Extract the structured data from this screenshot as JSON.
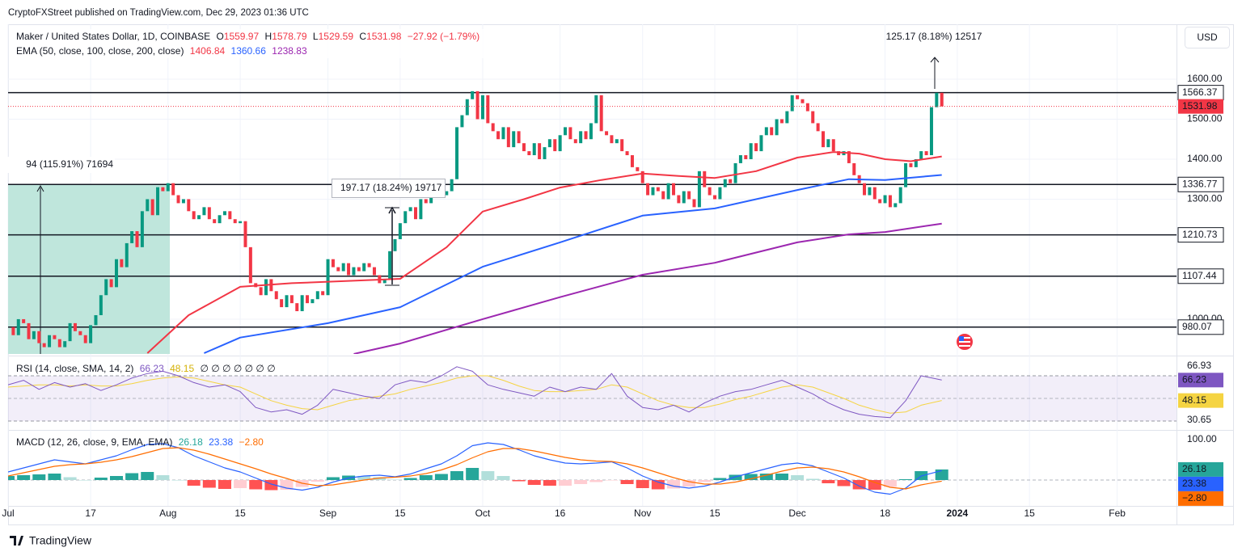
{
  "header": {
    "publisher": "CryptoFXStreet published on TradingView.com, Dec 29, 2023 01:36 UTC"
  },
  "footer": {
    "brand": "TradingView"
  },
  "chart_data": {
    "type": "candlestick",
    "legend": {
      "symbol": "Maker / United States Dollar, 1D, COINBASE",
      "o_label": "O",
      "open": 1559.97,
      "h_label": "H",
      "high": 1578.79,
      "l_label": "L",
      "low": 1529.59,
      "c_label": "C",
      "change": "−27.92 (−1.79%)",
      "ema_title": "EMA (50, close, 100, close, 200, close)"
    },
    "currency": "USD",
    "annotations": [
      "94 (115.91%) 71694",
      "197.17 (18.24%) 19717",
      "125.17 (8.18%) 12517"
    ],
    "xlim": [
      -1.57,
      226.5
    ],
    "xticks": [
      {
        "value": 0,
        "label": "Jul"
      },
      {
        "value": 16,
        "label": "17"
      },
      {
        "value": 31,
        "label": "Aug"
      },
      {
        "value": 45,
        "label": "15"
      },
      {
        "value": 62,
        "label": "Sep"
      },
      {
        "value": 76,
        "label": "15"
      },
      {
        "value": 92,
        "label": "Oct"
      },
      {
        "value": 107,
        "label": "16"
      },
      {
        "value": 123,
        "label": "Nov"
      },
      {
        "value": 137,
        "label": "15"
      },
      {
        "value": 153,
        "label": "Dec"
      },
      {
        "value": 170,
        "label": "18"
      },
      {
        "value": 184,
        "label": "2024"
      },
      {
        "value": 198,
        "label": "15"
      },
      {
        "value": 215,
        "label": "Feb"
      }
    ],
    "ylim": [
      913,
      1737.4
    ],
    "yticks": [
      {
        "value": 1000,
        "label": "1000.00"
      },
      {
        "value": 1300,
        "label": "1300.00"
      },
      {
        "value": 1400,
        "label": "1400.00"
      },
      {
        "value": 1500,
        "label": "1500.00"
      },
      {
        "value": 1600,
        "label": "1600.00"
      }
    ],
    "up_color": "#089981",
    "down_color": "#f23645",
    "candles": {
      "x": [
        0,
        1,
        2,
        3,
        4,
        5,
        6,
        7,
        8,
        9,
        10,
        11,
        12,
        13,
        14,
        15,
        16,
        17,
        18,
        19,
        20,
        21,
        22,
        23,
        24,
        25,
        26,
        27,
        28,
        29,
        30,
        31,
        32,
        33,
        34,
        35,
        36,
        37,
        38,
        39,
        40,
        41,
        42,
        43,
        44,
        45,
        46,
        47,
        48,
        49,
        50,
        51,
        52,
        53,
        54,
        55,
        56,
        57,
        58,
        59,
        60,
        61,
        62,
        63,
        64,
        65,
        66,
        67,
        68,
        69,
        70,
        71,
        72,
        73,
        74,
        75,
        76,
        77,
        78,
        79,
        80,
        81,
        82,
        83,
        84,
        85,
        86,
        87,
        88,
        89,
        90,
        91,
        92,
        93,
        94,
        95,
        96,
        97,
        98,
        99,
        100,
        101,
        102,
        103,
        104,
        105,
        106,
        107,
        108,
        109,
        110,
        111,
        112,
        113,
        114,
        115,
        116,
        117,
        118,
        119,
        120,
        121,
        122,
        123,
        124,
        125,
        126,
        127,
        128,
        129,
        130,
        131,
        132,
        133,
        134,
        135,
        136,
        137,
        138,
        139,
        140,
        141,
        142,
        143,
        144,
        145,
        146,
        147,
        148,
        149,
        150,
        151,
        152,
        153,
        154,
        155,
        156,
        157,
        158,
        159,
        160,
        161,
        162,
        163,
        164,
        165,
        166,
        167,
        168,
        169,
        170,
        171,
        172,
        173,
        174,
        175,
        176,
        177,
        178,
        179,
        180,
        181
      ],
      "values": [
        980,
        960,
        1000,
        990,
        950,
        970,
        940,
        930,
        960,
        950,
        930,
        945,
        990,
        970,
        960,
        940,
        985,
        1010,
        1060,
        1100,
        1080,
        1150,
        1130,
        1190,
        1220,
        1180,
        1270,
        1300,
        1260,
        1330,
        1320,
        1340,
        1310,
        1290,
        1300,
        1270,
        1250,
        1260,
        1280,
        1250,
        1240,
        1260,
        1270,
        1250,
        1240,
        1245,
        1180,
        1090,
        1080,
        1060,
        1100,
        1070,
        1050,
        1030,
        1060,
        1040,
        1020,
        1060,
        1040,
        1050,
        1070,
        1060,
        1150,
        1130,
        1120,
        1140,
        1110,
        1130,
        1120,
        1140,
        1130,
        1110,
        1090,
        1100,
        1170,
        1200,
        1240,
        1270,
        1280,
        1250,
        1300,
        1290,
        1320,
        1330,
        1310,
        1320,
        1350,
        1480,
        1510,
        1550,
        1570,
        1500,
        1560,
        1490,
        1470,
        1450,
        1480,
        1430,
        1470,
        1440,
        1420,
        1410,
        1440,
        1400,
        1430,
        1450,
        1420,
        1460,
        1480,
        1450,
        1440,
        1470,
        1450,
        1490,
        1560,
        1470,
        1460,
        1440,
        1450,
        1420,
        1410,
        1380,
        1370,
        1340,
        1310,
        1330,
        1320,
        1300,
        1340,
        1310,
        1290,
        1320,
        1300,
        1280,
        1370,
        1330,
        1310,
        1300,
        1330,
        1350,
        1340,
        1390,
        1410,
        1400,
        1440,
        1420,
        1460,
        1480,
        1460,
        1500,
        1490,
        1520,
        1560,
        1550,
        1540,
        1520,
        1490,
        1470,
        1430,
        1450,
        1420,
        1410,
        1420,
        1390,
        1360,
        1340,
        1310,
        1330,
        1300,
        1290,
        1310,
        1280,
        1290,
        1330,
        1390,
        1380,
        1400,
        1420,
        1410,
        1530,
        1566,
        1531.98
      ]
    },
    "ema": [
      {
        "color": "#f23645",
        "x": [
          27,
          35,
          45,
          55,
          65,
          76,
          85,
          92,
          100,
          107,
          115,
          123,
          130,
          137,
          145,
          153,
          160,
          165,
          170,
          175,
          181
        ],
        "values": [
          915,
          1010,
          1081,
          1090,
          1095,
          1101,
          1180,
          1269,
          1300,
          1329,
          1348,
          1364,
          1358,
          1353,
          1370,
          1404,
          1418,
          1414,
          1400,
          1395,
          1406.84
        ]
      },
      {
        "color": "#2962ff",
        "x": [
          38,
          45,
          62,
          76,
          92,
          107,
          123,
          137,
          153,
          163,
          170,
          181
        ],
        "values": [
          915,
          954,
          990,
          1030,
          1131,
          1192,
          1259,
          1277,
          1323,
          1350,
          1348,
          1360.66
        ]
      },
      {
        "color": "#9c27b0",
        "x": [
          67,
          76,
          92,
          107,
          123,
          137,
          153,
          163,
          170,
          181
        ],
        "values": [
          913,
          939,
          1000,
          1055,
          1111,
          1141,
          1192,
          1212,
          1218,
          1238.83
        ]
      }
    ],
    "levels": [
      1566.37,
      1336.77,
      1210.73,
      1107.44,
      980.07
    ],
    "level_color": "#131722",
    "rsi": {
      "title": "RSI (14, close, SMA, 14, 2)",
      "placeholders": "∅ ∅ ∅ ∅ ∅ ∅ ∅",
      "scale_labels": [
        "66.93",
        "30.65"
      ],
      "ylim": [
        23.6,
        84.3
      ],
      "bands": [
        70,
        30
      ],
      "midline": 50,
      "band_color": "#7e57c2",
      "x": [
        0,
        3,
        6,
        9,
        12,
        15,
        18,
        21,
        24,
        27,
        30,
        33,
        36,
        39,
        42,
        45,
        48,
        51,
        54,
        57,
        60,
        63,
        66,
        69,
        72,
        75,
        78,
        81,
        84,
        87,
        90,
        93,
        96,
        99,
        102,
        105,
        108,
        111,
        114,
        117,
        120,
        123,
        126,
        129,
        132,
        135,
        138,
        141,
        144,
        147,
        150,
        153,
        156,
        159,
        162,
        165,
        168,
        171,
        174,
        177,
        181
      ],
      "series": [
        {
          "color": "#7e57c2",
          "values": [
            62,
            66,
            58,
            64,
            60,
            63,
            57,
            62,
            68,
            72,
            74,
            70,
            64,
            60,
            62,
            56,
            42,
            38,
            40,
            36,
            44,
            58,
            55,
            52,
            50,
            62,
            66,
            64,
            70,
            78,
            74,
            62,
            58,
            55,
            52,
            60,
            56,
            60,
            58,
            72,
            52,
            42,
            40,
            44,
            38,
            46,
            52,
            56,
            58,
            62,
            66,
            60,
            54,
            46,
            40,
            36,
            34,
            33,
            48,
            70,
            66.23
          ]
        },
        {
          "color": "#f5d442",
          "values": [
            60,
            61,
            62,
            62,
            61,
            62,
            61,
            61,
            63,
            66,
            68,
            69,
            68,
            65,
            62,
            60,
            54,
            48,
            44,
            41,
            40,
            44,
            48,
            50,
            52,
            54,
            58,
            61,
            64,
            68,
            70,
            70,
            66,
            61,
            57,
            56,
            56,
            57,
            58,
            62,
            60,
            54,
            48,
            44,
            42,
            42,
            45,
            49,
            52,
            56,
            60,
            62,
            60,
            55,
            50,
            44,
            40,
            37,
            38,
            44,
            48.15
          ]
        }
      ]
    },
    "macd": {
      "title": "MACD (12, 26, close, 9, EMA, EMA)",
      "ylim": [
        -62,
        118
      ],
      "yticks": [
        {
          "value": 100,
          "label": "100.00"
        }
      ],
      "zero": 0,
      "x": [
        0,
        3,
        6,
        9,
        12,
        15,
        18,
        21,
        24,
        27,
        30,
        33,
        36,
        39,
        42,
        45,
        48,
        51,
        54,
        57,
        60,
        63,
        66,
        69,
        72,
        75,
        78,
        81,
        84,
        87,
        90,
        93,
        96,
        99,
        102,
        105,
        108,
        111,
        114,
        117,
        120,
        123,
        126,
        129,
        132,
        135,
        138,
        141,
        144,
        147,
        150,
        153,
        156,
        159,
        162,
        165,
        168,
        171,
        174,
        177,
        181
      ],
      "histogram": {
        "colors": [
          "#26a69a",
          "#b2dfdb",
          "#ff5252",
          "#ffcdd2"
        ],
        "values": [
          10,
          12,
          14,
          16,
          7,
          0,
          6,
          10,
          17,
          20,
          12,
          0,
          -14,
          -19,
          -22,
          -20,
          -23,
          -25,
          -24,
          -17,
          -4,
          7,
          11,
          10,
          7,
          1,
          5,
          12,
          15,
          22,
          30,
          22,
          10,
          -3,
          -12,
          -14,
          -14,
          -10,
          -5,
          -1,
          -10,
          -20,
          -23,
          -21,
          -16,
          -5,
          5,
          13,
          15,
          16,
          16,
          12,
          3,
          -8,
          -15,
          -23,
          -24,
          -17,
          2,
          22,
          26.18
        ]
      },
      "series": [
        {
          "color": "#2962ff",
          "values": [
            20,
            30,
            40,
            50,
            45,
            40,
            50,
            60,
            75,
            88,
            90,
            80,
            60,
            45,
            30,
            20,
            5,
            -10,
            -20,
            -25,
            -18,
            -5,
            5,
            10,
            12,
            8,
            15,
            28,
            40,
            60,
            85,
            92,
            88,
            75,
            60,
            50,
            42,
            40,
            42,
            45,
            30,
            10,
            -5,
            -15,
            -20,
            -15,
            -5,
            8,
            18,
            28,
            38,
            42,
            35,
            20,
            5,
            -15,
            -30,
            -35,
            -20,
            10,
            23.38
          ]
        },
        {
          "color": "#ff6d00",
          "last_label": "−2.80",
          "values": [
            10,
            18,
            26,
            34,
            38,
            40,
            44,
            50,
            58,
            68,
            78,
            80,
            74,
            64,
            52,
            40,
            28,
            15,
            4,
            -8,
            -14,
            -12,
            -6,
            0,
            5,
            7,
            10,
            16,
            25,
            38,
            55,
            70,
            78,
            78,
            72,
            64,
            56,
            50,
            47,
            46,
            40,
            30,
            18,
            6,
            -4,
            -10,
            -10,
            -5,
            3,
            12,
            22,
            30,
            32,
            28,
            20,
            8,
            -6,
            -18,
            -22,
            -12,
            -2.8
          ]
        }
      ]
    }
  }
}
